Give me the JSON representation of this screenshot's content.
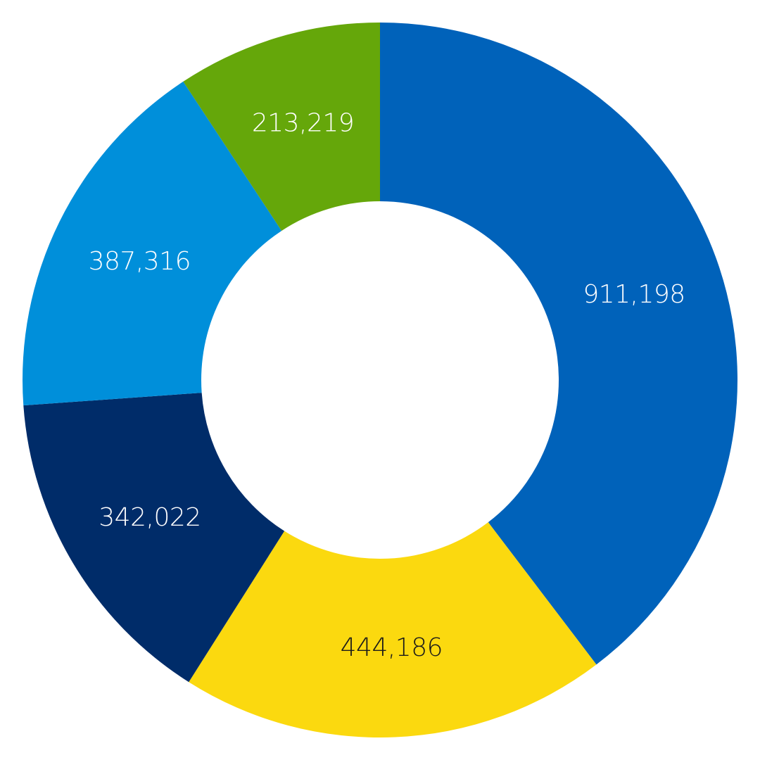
{
  "chart_data": {
    "type": "pie",
    "variant": "donut",
    "start": "top",
    "direction": "clockwise",
    "slices": [
      {
        "label": "911,198",
        "value": 911198,
        "color": "#0062BA",
        "label_color": "#FFFFFF"
      },
      {
        "label": "444,186",
        "value": 444186,
        "color": "#FBD90F",
        "label_color": "#1A1A1A"
      },
      {
        "label": "342,022",
        "value": 342022,
        "color": "#002C69",
        "label_color": "#FFFFFF"
      },
      {
        "label": "387,316",
        "value": 387316,
        "color": "#008FDA",
        "label_color": "#FFFFFF"
      },
      {
        "label": "213,219",
        "value": 213219,
        "color": "#65A70A",
        "label_color": "#FFFFFF"
      }
    ]
  }
}
